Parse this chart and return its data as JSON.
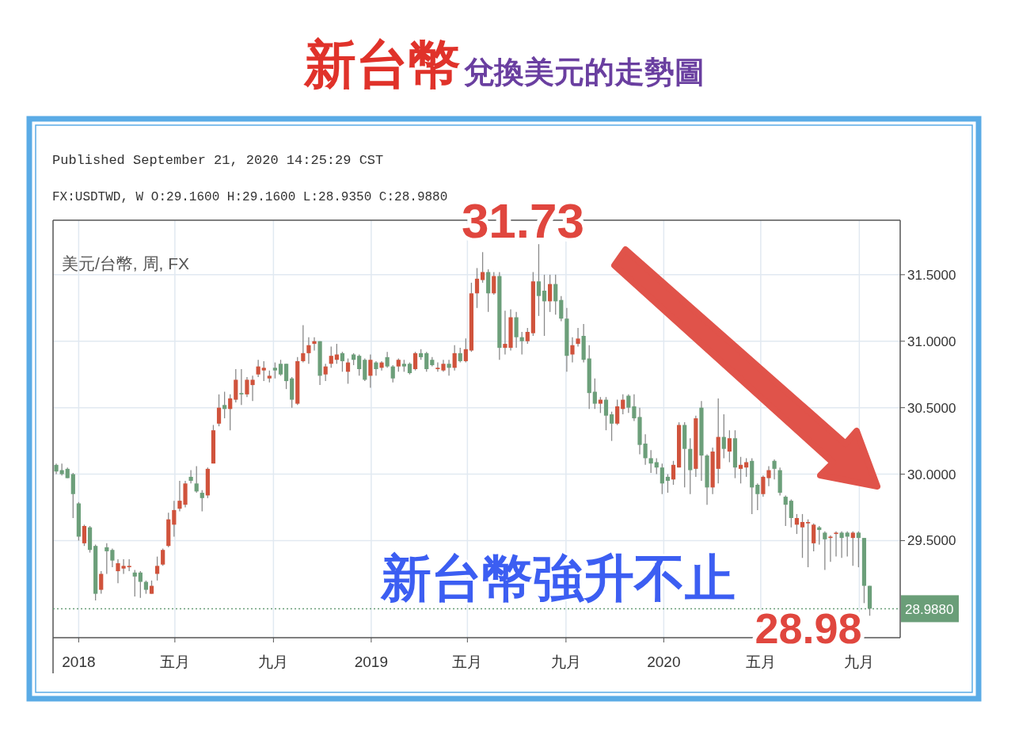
{
  "chart_data": {
    "type": "candlestick",
    "title": "新台幣",
    "subtitle": "兌換美元的走勢圖",
    "annotations": [
      "Published September 21, 2020 14:25:29 CST",
      "FX:USDTWD, W O:29.1600 H:29.1600 L:28.9350 C:28.9880",
      "美元/台幣, 周, FX",
      "新台幣強升不止",
      {
        "text": "31.73",
        "x": "2019-07-29",
        "y": 31.73
      },
      {
        "text": "28.98",
        "x": "2020-09-14",
        "y": 28.98
      }
    ],
    "x": [
      "2017-12-04",
      "2017-12-11",
      "2017-12-18",
      "2017-12-25",
      "2018-01-01",
      "2018-01-08",
      "2018-01-15",
      "2018-01-22",
      "2018-01-29",
      "2018-02-05",
      "2018-02-12",
      "2018-02-19",
      "2018-02-26",
      "2018-03-05",
      "2018-03-12",
      "2018-03-19",
      "2018-03-26",
      "2018-04-02",
      "2018-04-09",
      "2018-04-16",
      "2018-04-23",
      "2018-04-30",
      "2018-05-07",
      "2018-05-14",
      "2018-05-21",
      "2018-05-28",
      "2018-06-04",
      "2018-06-11",
      "2018-06-18",
      "2018-06-25",
      "2018-07-02",
      "2018-07-09",
      "2018-07-16",
      "2018-07-23",
      "2018-07-30",
      "2018-08-06",
      "2018-08-13",
      "2018-08-20",
      "2018-08-27",
      "2018-09-03",
      "2018-09-10",
      "2018-09-17",
      "2018-09-24",
      "2018-10-01",
      "2018-10-08",
      "2018-10-15",
      "2018-10-22",
      "2018-10-29",
      "2018-11-05",
      "2018-11-12",
      "2018-11-19",
      "2018-11-26",
      "2018-12-03",
      "2018-12-10",
      "2018-12-17",
      "2018-12-24",
      "2018-12-31",
      "2019-01-07",
      "2019-01-14",
      "2019-01-21",
      "2019-01-28",
      "2019-02-04",
      "2019-02-11",
      "2019-02-18",
      "2019-02-25",
      "2019-03-04",
      "2019-03-11",
      "2019-03-18",
      "2019-03-25",
      "2019-04-01",
      "2019-04-08",
      "2019-04-15",
      "2019-04-22",
      "2019-04-29",
      "2019-05-06",
      "2019-05-13",
      "2019-05-20",
      "2019-05-27",
      "2019-06-03",
      "2019-06-10",
      "2019-06-17",
      "2019-06-24",
      "2019-07-01",
      "2019-07-08",
      "2019-07-15",
      "2019-07-22",
      "2019-07-29",
      "2019-08-05",
      "2019-08-12",
      "2019-08-19",
      "2019-08-26",
      "2019-09-02",
      "2019-09-09",
      "2019-09-16",
      "2019-09-23",
      "2019-09-30",
      "2019-10-07",
      "2019-10-14",
      "2019-10-21",
      "2019-10-28",
      "2019-11-04",
      "2019-11-11",
      "2019-11-18",
      "2019-11-25",
      "2019-12-02",
      "2019-12-09",
      "2019-12-16",
      "2019-12-23",
      "2019-12-30",
      "2020-01-06",
      "2020-01-13",
      "2020-01-20",
      "2020-01-27",
      "2020-02-03",
      "2020-02-10",
      "2020-02-17",
      "2020-02-24",
      "2020-03-02",
      "2020-03-09",
      "2020-03-16",
      "2020-03-23",
      "2020-03-30",
      "2020-04-06",
      "2020-04-13",
      "2020-04-20",
      "2020-04-27",
      "2020-05-04",
      "2020-05-11",
      "2020-05-18",
      "2020-05-25",
      "2020-06-01",
      "2020-06-08",
      "2020-06-15",
      "2020-06-22",
      "2020-06-29",
      "2020-07-06",
      "2020-07-13",
      "2020-07-20",
      "2020-07-27",
      "2020-08-03",
      "2020-08-10",
      "2020-08-17",
      "2020-08-24",
      "2020-08-31",
      "2020-09-07",
      "2020-09-14"
    ],
    "ohlc": [
      [
        30.07,
        30.08,
        30.0,
        30.02
      ],
      [
        30.03,
        30.08,
        29.99,
        30.0
      ],
      [
        30.04,
        30.05,
        29.97,
        29.97
      ],
      [
        30.0,
        30.01,
        29.67,
        29.85
      ],
      [
        29.78,
        29.79,
        29.5,
        29.53
      ],
      [
        29.48,
        29.62,
        29.46,
        29.61
      ],
      [
        29.6,
        29.61,
        29.41,
        29.43
      ],
      [
        29.46,
        29.47,
        29.05,
        29.1
      ],
      [
        29.13,
        29.27,
        29.1,
        29.25
      ],
      [
        29.45,
        29.48,
        29.25,
        29.42
      ],
      [
        29.43,
        29.44,
        29.3,
        29.35
      ],
      [
        29.27,
        29.36,
        29.18,
        29.33
      ],
      [
        29.29,
        29.36,
        29.25,
        29.31
      ],
      [
        29.3,
        29.36,
        29.27,
        29.31
      ],
      [
        29.26,
        29.28,
        29.08,
        29.23
      ],
      [
        29.26,
        29.27,
        29.07,
        29.19
      ],
      [
        29.19,
        29.2,
        29.1,
        29.13
      ],
      [
        29.1,
        29.2,
        29.1,
        29.16
      ],
      [
        29.25,
        29.38,
        29.2,
        29.31
      ],
      [
        29.32,
        29.44,
        29.31,
        29.43
      ],
      [
        29.46,
        29.71,
        29.45,
        29.66
      ],
      [
        29.62,
        29.8,
        29.53,
        29.73
      ],
      [
        29.74,
        29.95,
        29.72,
        29.8
      ],
      [
        29.77,
        29.95,
        29.75,
        29.93
      ],
      [
        29.98,
        30.03,
        29.93,
        29.95
      ],
      [
        29.93,
        30.06,
        29.86,
        29.87
      ],
      [
        29.86,
        29.88,
        29.72,
        29.82
      ],
      [
        29.84,
        30.05,
        29.82,
        30.04
      ],
      [
        30.08,
        30.37,
        30.08,
        30.33
      ],
      [
        30.38,
        30.6,
        30.36,
        30.5
      ],
      [
        30.52,
        30.62,
        30.42,
        30.49
      ],
      [
        30.49,
        30.6,
        30.33,
        30.57
      ],
      [
        30.56,
        30.79,
        30.54,
        30.71
      ],
      [
        30.61,
        30.79,
        30.52,
        30.6
      ],
      [
        30.6,
        30.73,
        30.58,
        30.71
      ],
      [
        30.67,
        30.74,
        30.55,
        30.71
      ],
      [
        30.75,
        30.86,
        30.73,
        30.81
      ],
      [
        30.78,
        30.85,
        30.7,
        30.8
      ],
      [
        30.72,
        30.78,
        30.69,
        30.74
      ],
      [
        30.8,
        30.84,
        30.72,
        30.78
      ],
      [
        30.83,
        30.86,
        30.74,
        30.75
      ],
      [
        30.83,
        30.83,
        30.64,
        30.7
      ],
      [
        30.72,
        30.73,
        30.5,
        30.56
      ],
      [
        30.53,
        30.88,
        30.52,
        30.85
      ],
      [
        30.85,
        31.12,
        30.84,
        30.91
      ],
      [
        30.91,
        31.03,
        30.83,
        30.97
      ],
      [
        30.98,
        31.03,
        30.93,
        31.0
      ],
      [
        31.0,
        31.0,
        30.67,
        30.74
      ],
      [
        30.75,
        30.83,
        30.7,
        30.81
      ],
      [
        30.83,
        30.96,
        30.8,
        30.89
      ],
      [
        30.86,
        30.98,
        30.83,
        30.9
      ],
      [
        30.91,
        30.92,
        30.77,
        30.85
      ],
      [
        30.77,
        30.87,
        30.68,
        30.84
      ],
      [
        30.9,
        30.91,
        30.82,
        30.86
      ],
      [
        30.89,
        30.9,
        30.74,
        30.79
      ],
      [
        30.86,
        30.87,
        30.7,
        30.71
      ],
      [
        30.74,
        30.9,
        30.65,
        30.86
      ],
      [
        30.84,
        30.85,
        30.74,
        30.79
      ],
      [
        30.8,
        30.85,
        30.78,
        30.84
      ],
      [
        30.88,
        30.92,
        30.8,
        30.81
      ],
      [
        30.81,
        30.82,
        30.69,
        30.72
      ],
      [
        30.81,
        30.87,
        30.77,
        30.86
      ],
      [
        30.83,
        30.86,
        30.77,
        30.81
      ],
      [
        30.83,
        30.84,
        30.75,
        30.76
      ],
      [
        30.79,
        30.92,
        30.78,
        30.91
      ],
      [
        30.91,
        30.94,
        30.86,
        30.88
      ],
      [
        30.91,
        30.92,
        30.77,
        30.79
      ],
      [
        30.86,
        30.88,
        30.81,
        30.82
      ],
      [
        30.79,
        30.84,
        30.77,
        30.8
      ],
      [
        30.78,
        30.86,
        30.77,
        30.83
      ],
      [
        30.83,
        30.86,
        30.74,
        30.8
      ],
      [
        30.8,
        30.97,
        30.78,
        30.91
      ],
      [
        30.91,
        30.95,
        30.84,
        30.85
      ],
      [
        30.85,
        31.02,
        30.84,
        30.94
      ],
      [
        30.93,
        31.44,
        30.92,
        31.36
      ],
      [
        31.36,
        31.55,
        31.25,
        31.47
      ],
      [
        31.46,
        31.67,
        31.44,
        31.52
      ],
      [
        31.52,
        31.54,
        31.22,
        31.36
      ],
      [
        31.36,
        31.52,
        31.35,
        31.49
      ],
      [
        31.49,
        31.52,
        30.86,
        30.95
      ],
      [
        30.95,
        31.23,
        30.9,
        30.98
      ],
      [
        30.95,
        31.24,
        30.93,
        31.18
      ],
      [
        31.18,
        31.22,
        30.95,
        31.03
      ],
      [
        31.03,
        31.07,
        30.9,
        31.0
      ],
      [
        31.0,
        31.1,
        30.98,
        31.07
      ],
      [
        31.06,
        31.52,
        31.04,
        31.45
      ],
      [
        31.45,
        31.73,
        31.19,
        31.34
      ],
      [
        31.38,
        31.5,
        31.04,
        31.3
      ],
      [
        31.3,
        31.5,
        31.22,
        31.43
      ],
      [
        31.43,
        31.5,
        31.2,
        31.3
      ],
      [
        31.31,
        31.34,
        31.15,
        31.17
      ],
      [
        31.17,
        31.25,
        30.77,
        30.89
      ],
      [
        30.9,
        31.03,
        30.84,
        30.97
      ],
      [
        30.98,
        31.1,
        30.96,
        31.02
      ],
      [
        31.04,
        31.13,
        30.84,
        30.86
      ],
      [
        30.87,
        30.97,
        30.49,
        30.61
      ],
      [
        30.62,
        30.72,
        30.49,
        30.53
      ],
      [
        30.53,
        30.58,
        30.46,
        30.56
      ],
      [
        30.56,
        30.58,
        30.33,
        30.44
      ],
      [
        30.45,
        30.47,
        30.25,
        30.38
      ],
      [
        30.38,
        30.56,
        30.37,
        30.51
      ],
      [
        30.49,
        30.6,
        30.45,
        30.56
      ],
      [
        30.59,
        30.6,
        30.46,
        30.5
      ],
      [
        30.51,
        30.6,
        30.4,
        30.42
      ],
      [
        30.43,
        30.5,
        30.15,
        30.22
      ],
      [
        30.23,
        30.3,
        30.07,
        30.12
      ],
      [
        30.12,
        30.18,
        30.01,
        30.08
      ],
      [
        30.09,
        30.12,
        30.0,
        30.05
      ],
      [
        30.05,
        30.08,
        29.85,
        29.93
      ],
      [
        29.98,
        30.0,
        29.86,
        29.95
      ],
      [
        29.96,
        30.1,
        29.92,
        30.07
      ],
      [
        30.05,
        30.39,
        30.05,
        30.37
      ],
      [
        30.37,
        30.39,
        29.9,
        30.19
      ],
      [
        30.19,
        30.27,
        29.85,
        30.03
      ],
      [
        30.04,
        30.44,
        29.98,
        30.42
      ],
      [
        30.5,
        30.55,
        29.95,
        30.14
      ],
      [
        30.14,
        30.15,
        29.77,
        29.9
      ],
      [
        29.9,
        30.2,
        29.85,
        30.17
      ],
      [
        30.04,
        30.57,
        29.93,
        30.28
      ],
      [
        30.28,
        30.45,
        30.12,
        30.19
      ],
      [
        30.17,
        30.33,
        30.09,
        30.27
      ],
      [
        30.27,
        30.33,
        29.97,
        30.05
      ],
      [
        30.04,
        30.13,
        29.93,
        30.07
      ],
      [
        30.05,
        30.12,
        29.98,
        30.09
      ],
      [
        30.1,
        30.12,
        29.7,
        29.9
      ],
      [
        29.92,
        29.93,
        29.73,
        29.85
      ],
      [
        29.85,
        29.99,
        29.83,
        29.98
      ],
      [
        29.97,
        30.06,
        29.91,
        30.03
      ],
      [
        30.1,
        30.11,
        29.96,
        30.04
      ],
      [
        30.03,
        30.05,
        29.84,
        29.86
      ],
      [
        29.83,
        29.84,
        29.61,
        29.77
      ],
      [
        29.8,
        29.81,
        29.6,
        29.67
      ],
      [
        29.62,
        29.7,
        29.55,
        29.67
      ],
      [
        29.6,
        29.7,
        29.37,
        29.64
      ],
      [
        29.63,
        29.66,
        29.3,
        29.64
      ],
      [
        29.48,
        29.63,
        29.42,
        29.62
      ],
      [
        29.6,
        29.61,
        29.47,
        29.58
      ],
      [
        29.56,
        29.57,
        29.28,
        29.51
      ],
      [
        29.52,
        29.54,
        29.34,
        29.53
      ],
      [
        29.55,
        29.57,
        29.38,
        29.56
      ],
      [
        29.56,
        29.57,
        29.37,
        29.52
      ],
      [
        29.56,
        29.57,
        29.38,
        29.53
      ],
      [
        29.52,
        29.57,
        29.31,
        29.56
      ],
      [
        29.56,
        29.57,
        29.3,
        29.52
      ],
      [
        29.52,
        29.52,
        29.03,
        29.16
      ],
      [
        29.16,
        29.16,
        28.935,
        28.988
      ]
    ],
    "xlim": [
      "2017-11-30",
      "2020-10-22"
    ],
    "ylim": [
      28.77,
      31.91
    ],
    "xticks": [
      {
        "value": "2018-01-01",
        "label": "2018"
      },
      {
        "value": "2018-05-01",
        "label": "五月"
      },
      {
        "value": "2018-09-01",
        "label": "九月"
      },
      {
        "value": "2019-01-01",
        "label": "2019"
      },
      {
        "value": "2019-05-01",
        "label": "五月"
      },
      {
        "value": "2019-09-01",
        "label": "九月"
      },
      {
        "value": "2020-01-01",
        "label": "2020"
      },
      {
        "value": "2020-05-01",
        "label": "五月"
      },
      {
        "value": "2020-09-01",
        "label": "九月"
      }
    ],
    "yticks": [
      {
        "value": 29.5,
        "label": "29.5000"
      },
      {
        "value": 30.0,
        "label": "30.0000"
      },
      {
        "value": 30.5,
        "label": "30.5000"
      },
      {
        "value": 31.0,
        "label": "31.0000"
      },
      {
        "value": 31.5,
        "label": "31.5000"
      }
    ],
    "grid": true,
    "ref_lines": [
      {
        "axis": "y",
        "value": 28.988,
        "label": "28.9880",
        "color": "#6a9e78",
        "line_style": "dotted"
      }
    ]
  }
}
